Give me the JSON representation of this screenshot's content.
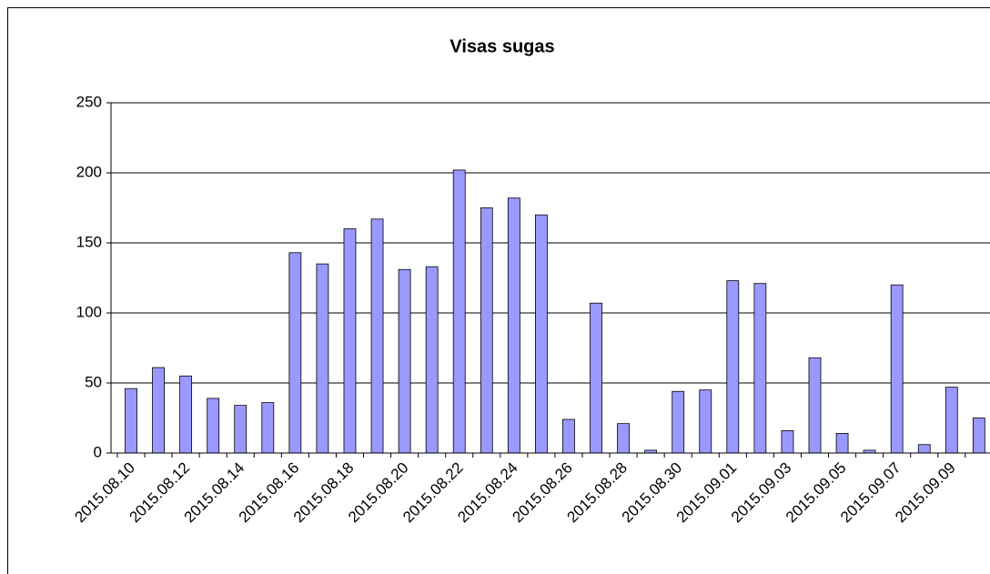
{
  "chart_data": {
    "type": "bar",
    "title": "Visas sugas",
    "categories": [
      "2015.08.10",
      null,
      "2015.08.12",
      null,
      "2015.08.14",
      null,
      "2015.08.16",
      null,
      "2015.08.18",
      null,
      "2015.08.20",
      null,
      "2015.08.22",
      null,
      "2015.08.24",
      null,
      "2015.08.26",
      null,
      "2015.08.28",
      null,
      "2015.08.30",
      null,
      "2015.09.01",
      null,
      "2015.09.03",
      null,
      "2015.09.05",
      null,
      "2015.09.07",
      null,
      "2015.09.09",
      null
    ],
    "values": [
      46,
      61,
      55,
      39,
      34,
      36,
      143,
      135,
      160,
      167,
      131,
      133,
      202,
      175,
      182,
      170,
      24,
      107,
      21,
      2,
      44,
      45,
      123,
      121,
      16,
      68,
      14,
      2,
      120,
      6,
      47,
      25
    ],
    "color": "#9999ff",
    "ylim": [
      0,
      250
    ],
    "yticks": [
      0,
      50,
      100,
      150,
      200,
      250
    ],
    "grid": true
  }
}
